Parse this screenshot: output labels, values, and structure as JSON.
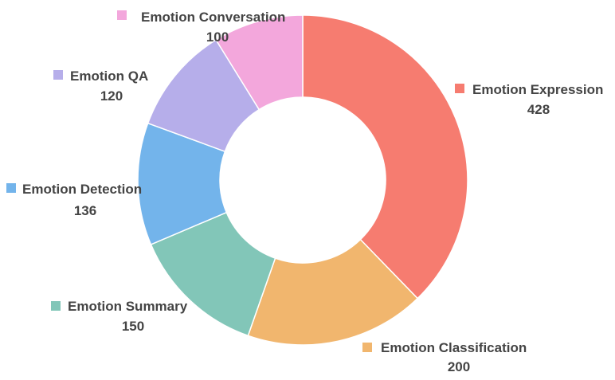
{
  "chart_data": {
    "type": "pie",
    "donut": true,
    "legend": "none",
    "slices": [
      {
        "label": "Emotion Expression",
        "value": 428,
        "color": "#F67C70"
      },
      {
        "label": "Emotion Classification",
        "value": 200,
        "color": "#F1B66E"
      },
      {
        "label": "Emotion Summary",
        "value": 150,
        "color": "#82C6B8"
      },
      {
        "label": "Emotion Detection",
        "value": 136,
        "color": "#73B4EB"
      },
      {
        "label": "Emotion QA",
        "value": 120,
        "color": "#B6AEEA"
      },
      {
        "label": "Emotion Conversation",
        "value": 100,
        "color": "#F3A7DC"
      }
    ]
  }
}
